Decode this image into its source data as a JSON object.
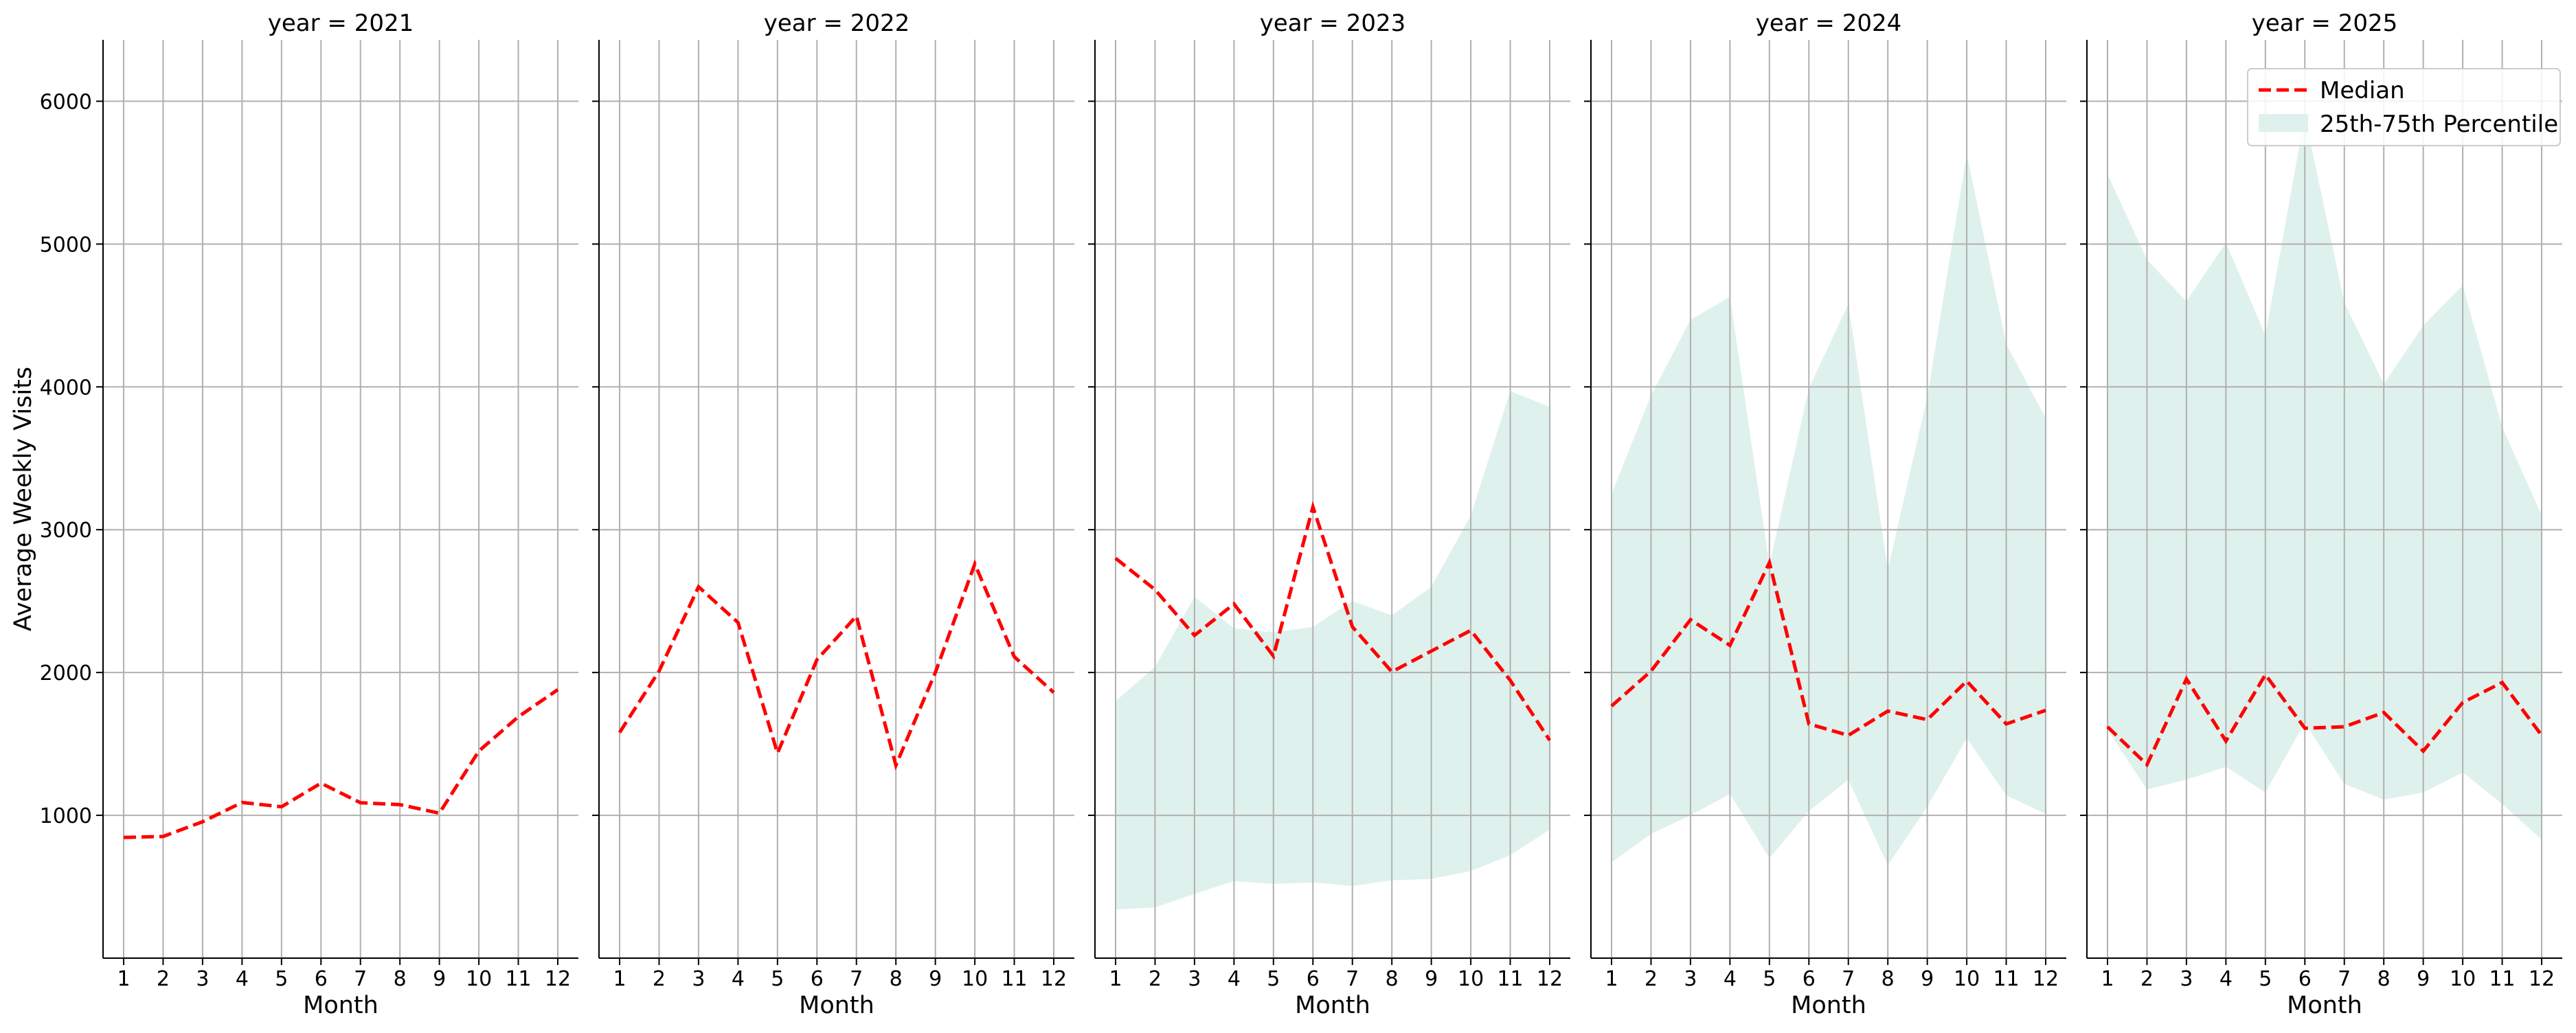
{
  "chart_data": {
    "type": "line",
    "ylabel": "Average Weekly Visits",
    "xlabel": "Month",
    "x": [
      1,
      2,
      3,
      4,
      5,
      6,
      7,
      8,
      9,
      10,
      11,
      12
    ],
    "ylim": [
      0,
      6430
    ],
    "yticks": [
      1000,
      2000,
      3000,
      4000,
      5000,
      6000
    ],
    "grid": true,
    "legend": {
      "placement": "top-right",
      "items": [
        {
          "label": "Median",
          "style": "dashed-line",
          "color": "#ff0000"
        },
        {
          "label": "25th-75th Percentile",
          "style": "band",
          "color": "#dff1ec"
        }
      ]
    },
    "panels": [
      {
        "title": "year = 2021",
        "median": [
          845,
          852,
          955,
          1090,
          1060,
          1225,
          1088,
          1075,
          1015,
          1450,
          1690,
          1880
        ]
      },
      {
        "title": "year = 2022",
        "median": [
          1580,
          2010,
          2600,
          2350,
          1435,
          2090,
          2395,
          1350,
          2000,
          2760,
          2110,
          1860
        ]
      },
      {
        "title": "year = 2023",
        "median": [
          2800,
          2580,
          2260,
          2480,
          2115,
          3160,
          2320,
          2005,
          2150,
          2295,
          1945,
          1525
        ],
        "p25": [
          340,
          355,
          450,
          540,
          520,
          530,
          505,
          545,
          555,
          610,
          720,
          900
        ],
        "p75": [
          1800,
          2040,
          2530,
          2310,
          2280,
          2320,
          2500,
          2400,
          2600,
          3100,
          3970,
          3860
        ]
      },
      {
        "title": "year = 2024",
        "median": [
          1765,
          2010,
          2370,
          2190,
          2770,
          1640,
          1560,
          1730,
          1670,
          1940,
          1640,
          1735
        ],
        "p25": [
          670,
          870,
          1000,
          1150,
          700,
          1030,
          1250,
          650,
          1060,
          1540,
          1140,
          1010
        ],
        "p75": [
          3250,
          3940,
          4470,
          4630,
          2750,
          3990,
          4580,
          2720,
          3930,
          5630,
          4300,
          3780
        ]
      },
      {
        "title": "year = 2025",
        "median": [
          1620,
          1355,
          1955,
          1520,
          1985,
          1610,
          1620,
          1720,
          1450,
          1790,
          1930,
          1560
        ],
        "p25": [
          1600,
          1180,
          1250,
          1340,
          1160,
          1650,
          1220,
          1110,
          1160,
          1300,
          1080,
          830
        ],
        "p75": [
          5490,
          4890,
          4600,
          5010,
          4360,
          5900,
          4590,
          4020,
          4430,
          4710,
          3720,
          3100
        ]
      }
    ]
  }
}
